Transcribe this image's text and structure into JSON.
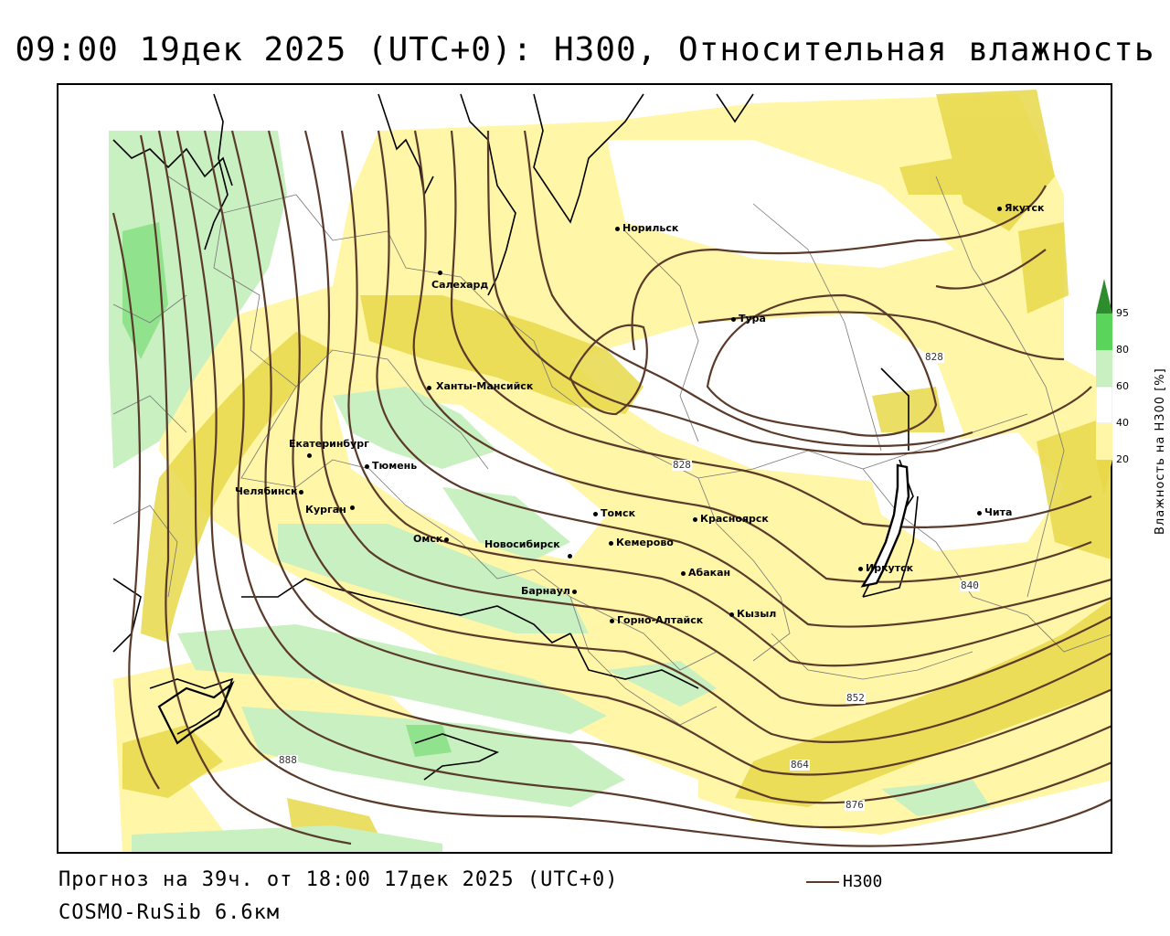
{
  "title": "09:00 19дек 2025 (UTC+0): H300, Относительная влажность",
  "footer": {
    "forecast": "Прогноз на 39ч. от 18:00 17дек 2025 (UTC+0)",
    "model": "COSMO-RuSib 6.6км"
  },
  "legend": {
    "h300_label": "H300"
  },
  "colorbar": {
    "title": "Влажность на H300 [%]",
    "ticks": [
      "95",
      "80",
      "60",
      "40",
      "20"
    ],
    "colors": {
      "c95": "#2e8b2e",
      "c80": "#5ad45a",
      "c60": "#c8f0c0",
      "c40": "#ffffff",
      "c20": "#fff6a8",
      "c10": "#e8d84a"
    }
  },
  "cities": {
    "norilsk": "Норильск",
    "yakutsk": "Якутск",
    "salekhard": "Салехард",
    "tura": "Тура",
    "khanty": "Ханты-Мансийск",
    "ekb": "Екатеринбург",
    "tyumen": "Тюмень",
    "chelyabinsk": "Челябинск",
    "kurgan": "Курган",
    "omsk": "Омск",
    "novosibirsk": "Новосибирск",
    "tomsk": "Томск",
    "kemerovo": "Кемерово",
    "krasnoyarsk": "Красноярск",
    "abakan": "Абакан",
    "barnaul": "Барнаул",
    "gorno": "Горно-Алтайск",
    "kyzyl": "Кызыл",
    "irkutsk": "Иркутск",
    "chita": "Чита"
  },
  "contour_labels": {
    "c828a": "828",
    "c828b": "828",
    "c840": "840",
    "c852": "852",
    "c864": "864",
    "c876": "876",
    "c888": "888"
  }
}
